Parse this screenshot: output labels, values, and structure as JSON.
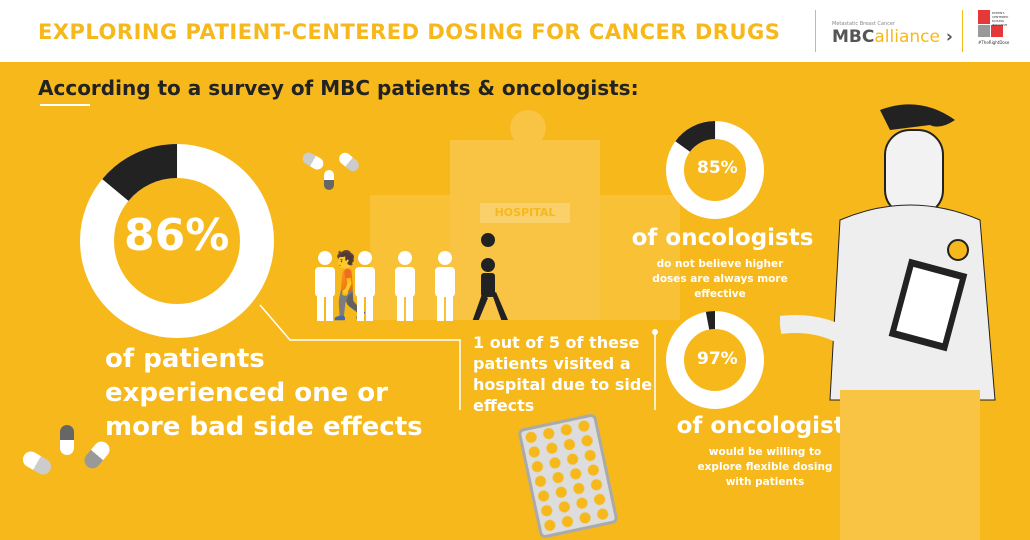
{
  "header": {
    "title": "EXPLORING PATIENT-CENTERED DOSING FOR CANCER DRUGS",
    "logo1_small": "Metastatic Breast Cancer",
    "logo1_a": "MBC",
    "logo1_b": "alliance",
    "logo2_text": "PATIENT-CENTERED DOSING INITIATIVE",
    "logo2_tag": "#TheRightDose"
  },
  "subtitle": "According to a survey of MBC patients & oncologists:",
  "stat1": {
    "value": "86%",
    "percent": 86,
    "text": "of patients experienced one or more bad side effects"
  },
  "hospital": {
    "sign": "HOSPITAL",
    "text": "1 out of 5 of these patients visited a hospital due to side effects"
  },
  "stat2": {
    "value": "85%",
    "percent": 85,
    "heading": "of oncologists",
    "text": "do not believe higher doses are always more effective"
  },
  "stat3": {
    "value": "97%",
    "percent": 97,
    "heading": "of oncologists",
    "text": "would be willing to explore flexible dosing with patients"
  },
  "colors": {
    "bg": "#F6B81A",
    "dark": "#222222",
    "white": "#ffffff"
  }
}
